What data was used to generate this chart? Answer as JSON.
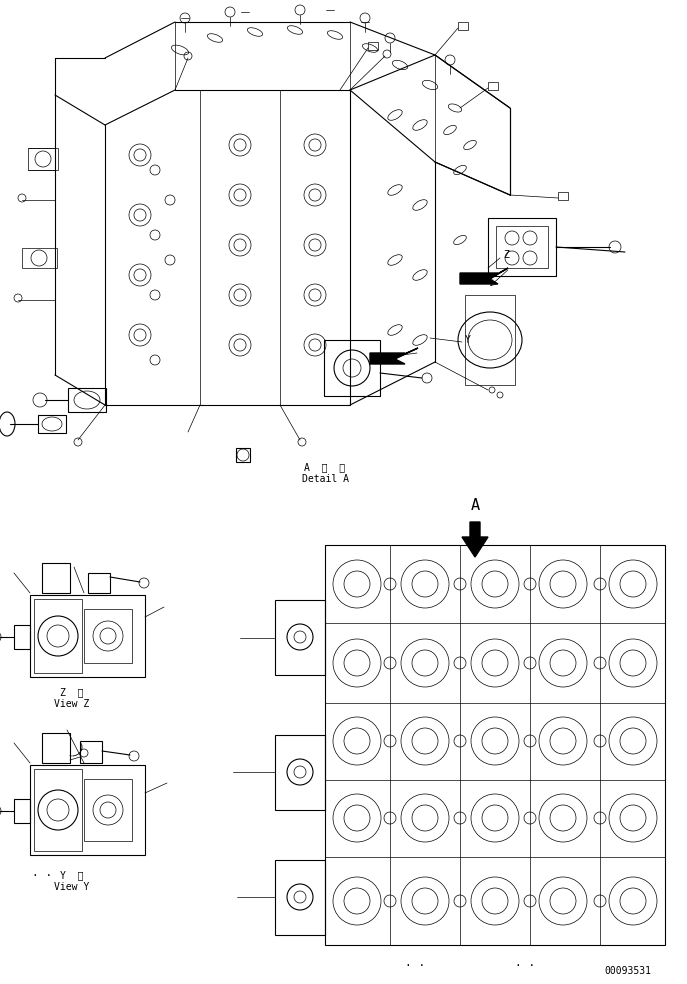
{
  "bg_color": "#ffffff",
  "line_color": "#000000",
  "text_color": "#000000",
  "page_number": "00093531",
  "detail_a_label": "A  詳  細\nDetail A",
  "view_z_label": "Z  視\nView Z",
  "view_y_label": "Y  視\nView Y",
  "arrow_a_label": "A"
}
